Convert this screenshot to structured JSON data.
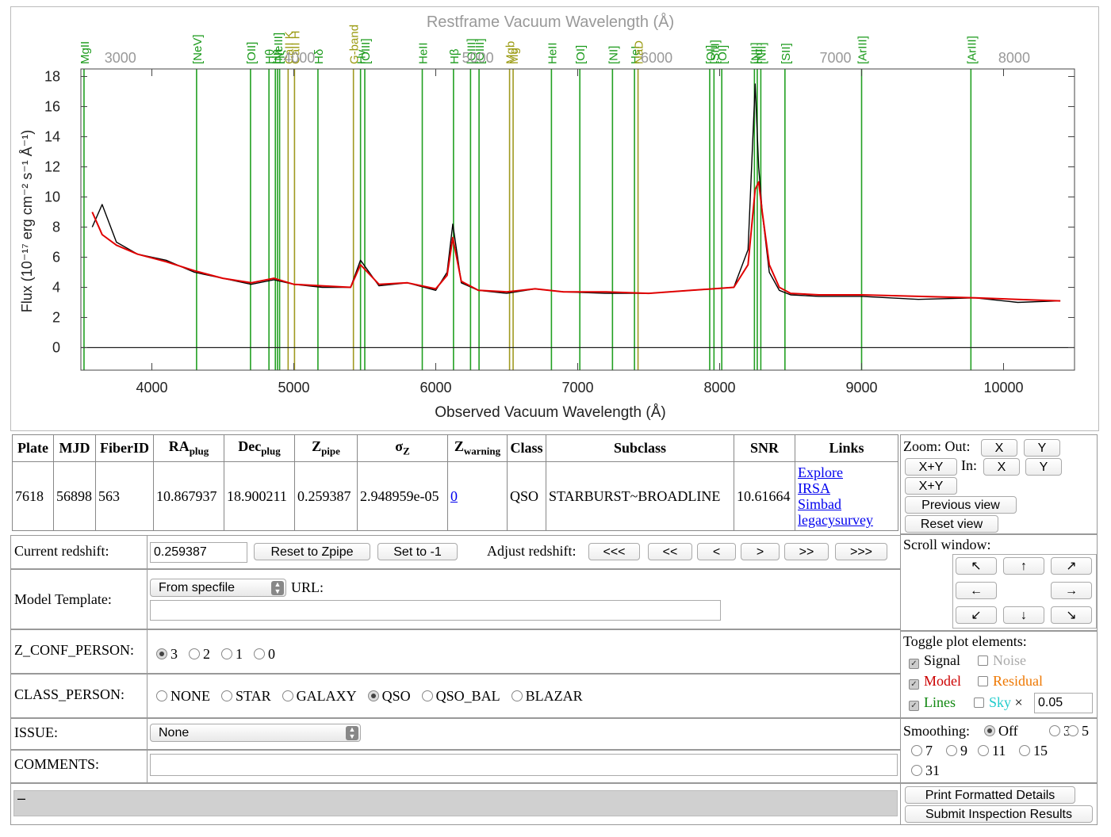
{
  "plot": {
    "top_axis_title": "Restframe Vacuum Wavelength (Å)",
    "bottom_axis_title": "Observed Vacuum Wavelength (Å)",
    "y_axis_title": "Flux (10⁻¹⁷ erg cm⁻² s⁻¹ Å⁻¹)",
    "x_ticks": [
      "4000",
      "5000",
      "6000",
      "7000",
      "8000",
      "9000",
      "10000"
    ],
    "top_ticks": [
      "3000",
      "4000",
      "5000",
      "6000",
      "7000",
      "8000"
    ],
    "y_ticks": [
      "0",
      "2",
      "4",
      "6",
      "8",
      "10",
      "12",
      "14",
      "16",
      "18"
    ],
    "colors": {
      "signal": "#000000",
      "model": "#e00000",
      "emission_line": "#22a022",
      "absorption_line": "#a09a20"
    }
  },
  "chart_data": {
    "type": "line",
    "title": "",
    "xlabel": "Observed Vacuum Wavelength (Å)",
    "x2label": "Restframe Vacuum Wavelength (Å)",
    "ylabel": "Flux (10⁻¹⁷ erg cm⁻² s⁻¹ Å⁻¹)",
    "xlim": [
      3500,
      10500
    ],
    "ylim": [
      -1.5,
      18.5
    ],
    "grid": false,
    "series": [
      {
        "name": "Model",
        "x": [
          3580,
          3650,
          3750,
          3900,
          4100,
          4300,
          4500,
          4700,
          4860,
          5000,
          5200,
          5400,
          5470,
          5600,
          5800,
          6000,
          6080,
          6120,
          6180,
          6300,
          6500,
          6700,
          6900,
          7200,
          7500,
          7800,
          8100,
          8200,
          8250,
          8275,
          8300,
          8350,
          8420,
          8500,
          8700,
          9000,
          9400,
          9800,
          10100,
          10400
        ],
        "y": [
          9.0,
          7.5,
          6.8,
          6.2,
          5.7,
          5.1,
          4.6,
          4.3,
          4.6,
          4.2,
          4.1,
          4.0,
          5.5,
          4.2,
          4.3,
          3.9,
          4.8,
          7.3,
          4.4,
          3.8,
          3.7,
          3.9,
          3.7,
          3.7,
          3.6,
          3.8,
          4.0,
          5.5,
          10.5,
          11.0,
          9.0,
          5.5,
          4.0,
          3.6,
          3.5,
          3.5,
          3.4,
          3.3,
          3.2,
          3.1
        ]
      },
      {
        "name": "Signal",
        "x": [
          3580,
          3650,
          3750,
          3900,
          4100,
          4300,
          4500,
          4700,
          4860,
          5000,
          5200,
          5400,
          5470,
          5600,
          5800,
          6000,
          6080,
          6120,
          6180,
          6300,
          6500,
          6700,
          6900,
          7200,
          7500,
          7800,
          8100,
          8200,
          8250,
          8275,
          8300,
          8350,
          8420,
          8500,
          8700,
          9000,
          9400,
          9800,
          10100,
          10400
        ],
        "y": [
          8.0,
          9.5,
          7.0,
          6.2,
          5.8,
          5.0,
          4.6,
          4.2,
          4.5,
          4.2,
          4.0,
          4.0,
          5.8,
          4.1,
          4.3,
          3.8,
          5.0,
          8.2,
          4.3,
          3.8,
          3.6,
          3.9,
          3.7,
          3.6,
          3.6,
          3.8,
          4.0,
          6.5,
          17.5,
          12.0,
          9.0,
          5.0,
          3.8,
          3.5,
          3.4,
          3.4,
          3.2,
          3.3,
          3.0,
          3.1
        ]
      }
    ]
  },
  "lines": [
    {
      "label": "MgII",
      "x": 3522,
      "color": "g"
    },
    {
      "label": "[NeV]",
      "x": 4315,
      "color": "g"
    },
    {
      "label": "[OII]",
      "x": 4695,
      "color": "g"
    },
    {
      "label": "Hθ",
      "x": 4825,
      "color": "g"
    },
    {
      "label": "Hη",
      "x": 4870,
      "color": "g"
    },
    {
      "label": "[NeIII]",
      "x": 4885,
      "color": "g"
    },
    {
      "label": "Hζ",
      "x": 4900,
      "color": "g"
    },
    {
      "label": "CaII K",
      "x": 4960,
      "color": "y"
    },
    {
      "label": "CaII H",
      "x": 5005,
      "color": "y"
    },
    {
      "label": "Hδ",
      "x": 5170,
      "color": "g"
    },
    {
      "label": "G-band",
      "x": 5420,
      "color": "y"
    },
    {
      "label": "Hγ",
      "x": 5470,
      "color": "g"
    },
    {
      "label": "[OIII]",
      "x": 5500,
      "color": "g"
    },
    {
      "label": "HeII",
      "x": 5905,
      "color": "g"
    },
    {
      "label": "Hβ",
      "x": 6125,
      "color": "g"
    },
    {
      "label": "[OIII]",
      "x": 6245,
      "color": "g"
    },
    {
      "label": "[OIII]",
      "x": 6305,
      "color": "g"
    },
    {
      "label": "Mgb",
      "x": 6520,
      "color": "y"
    },
    {
      "label": "Mg",
      "x": 6545,
      "color": "y"
    },
    {
      "label": "HeII",
      "x": 6815,
      "color": "g"
    },
    {
      "label": "[OI]",
      "x": 7015,
      "color": "g"
    },
    {
      "label": "[NI]",
      "x": 7245,
      "color": "g"
    },
    {
      "label": "HeI",
      "x": 7400,
      "color": "g"
    },
    {
      "label": "NaD",
      "x": 7425,
      "color": "y"
    },
    {
      "label": "[OI]",
      "x": 7930,
      "color": "g"
    },
    {
      "label": "[SIII]",
      "x": 7960,
      "color": "g"
    },
    {
      "label": "[OI]",
      "x": 8015,
      "color": "g"
    },
    {
      "label": "Hα",
      "x": 8265,
      "color": "g"
    },
    {
      "label": "[NII]",
      "x": 8245,
      "color": "g"
    },
    {
      "label": "[NII]",
      "x": 8290,
      "color": "g"
    },
    {
      "label": "[SII]",
      "x": 8460,
      "color": "g"
    },
    {
      "label": "[ArIII]",
      "x": 9000,
      "color": "g"
    },
    {
      "label": "[ArIII]",
      "x": 9770,
      "color": "g"
    }
  ],
  "info": {
    "headers": {
      "plate": "Plate",
      "mjd": "MJD",
      "fiber": "FiberID",
      "ra": "RA",
      "ra_sub": "plug",
      "dec": "Dec",
      "dec_sub": "plug",
      "z": "Z",
      "z_sub": "pipe",
      "sigma": "σ",
      "sigma_sub": "Z",
      "zwarn": "Z",
      "zwarn_sub": "warning",
      "class": "Class",
      "subclass": "Subclass",
      "snr": "SNR",
      "links": "Links"
    },
    "values": {
      "plate": "7618",
      "mjd": "56898",
      "fiber": "563",
      "ra": "10.867937",
      "dec": "18.900211",
      "z": "0.259387",
      "sigma": "2.948959e-05",
      "zwarn": "0",
      "class": "QSO",
      "subclass": "STARBURST~BROADLINE",
      "snr": "10.61664"
    },
    "links": [
      "Explore",
      "IRSA",
      "Simbad",
      "legacysurvey"
    ]
  },
  "zoom": {
    "label": "Zoom:",
    "out": "Out:",
    "in": "In:",
    "x": "X",
    "y": "Y",
    "xy": "X+Y",
    "previous": "Previous view",
    "reset": "Reset view"
  },
  "scroll": {
    "label": "Scroll window:",
    "arrows": [
      "↖",
      "↑",
      "↗",
      "←",
      "→",
      "↙",
      "↓",
      "↘"
    ]
  },
  "redshift": {
    "label": "Current redshift:",
    "value": "0.259387",
    "reset": "Reset to Zpipe",
    "set": "Set to -1",
    "adjust": "Adjust redshift:",
    "steps": [
      "<<<",
      "<<",
      "<",
      ">",
      ">>",
      ">>>"
    ]
  },
  "model": {
    "label": "Model Template:",
    "selected": "From specfile",
    "url_label": "URL:",
    "url_value": ""
  },
  "zconf": {
    "label": "Z_CONF_PERSON:",
    "options": [
      "3",
      "2",
      "1",
      "0"
    ],
    "selected": "3"
  },
  "classp": {
    "label": "CLASS_PERSON:",
    "options": [
      "NONE",
      "STAR",
      "GALAXY",
      "QSO",
      "QSO_BAL",
      "BLAZAR"
    ],
    "selected": "QSO"
  },
  "issue": {
    "label": "ISSUE:",
    "selected": "None"
  },
  "comments": {
    "label": "COMMENTS:",
    "value": ""
  },
  "toggle": {
    "label": "Toggle plot elements:",
    "signal": "Signal",
    "noise": "Noise",
    "model": "Model",
    "residual": "Residual",
    "lines": "Lines",
    "sky": "Sky",
    "times": "×",
    "sky_scale": "0.05",
    "colors": {
      "signal": "#000000",
      "noise": "#aaaaaa",
      "model": "#cc0000",
      "residual": "#ee7700",
      "lines": "#118811",
      "sky": "#22cccc"
    }
  },
  "smoothing": {
    "label": "Smoothing:",
    "options": [
      "Off",
      "3",
      "5",
      "7",
      "9",
      "11",
      "15",
      "31"
    ],
    "selected": "Off"
  },
  "status": {
    "text": "–"
  },
  "actions": {
    "print": "Print Formatted Details",
    "submit": "Submit Inspection Results"
  }
}
